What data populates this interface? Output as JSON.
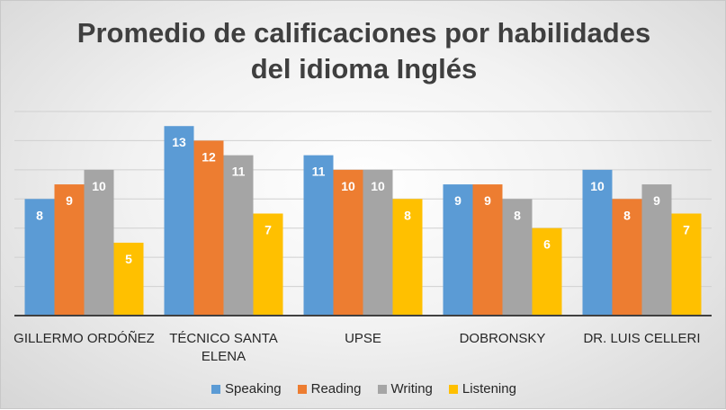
{
  "chart_data": {
    "type": "bar",
    "title_lines": [
      "Promedio de calificaciones por habilidades",
      "del idioma Inglés"
    ],
    "categories": [
      [
        "GILLERMO ORDÓÑEZ"
      ],
      [
        "TÉCNICO SANTA",
        "ELENA"
      ],
      [
        "UPSE"
      ],
      [
        "DOBRONSKY"
      ],
      [
        "DR. LUIS CELLERI"
      ]
    ],
    "series": [
      {
        "name": "Speaking",
        "color": "#5b9bd5",
        "values": [
          8,
          13,
          11,
          9,
          10
        ]
      },
      {
        "name": "Reading",
        "color": "#ed7d31",
        "values": [
          9,
          12,
          10,
          9,
          8
        ]
      },
      {
        "name": "Writing",
        "color": "#a5a5a5",
        "values": [
          10,
          11,
          10,
          8,
          9
        ]
      },
      {
        "name": "Listening",
        "color": "#ffc000",
        "values": [
          5,
          7,
          8,
          6,
          7
        ]
      }
    ],
    "ylim": [
      0,
      14
    ],
    "grid": true,
    "legend_position": "bottom"
  }
}
